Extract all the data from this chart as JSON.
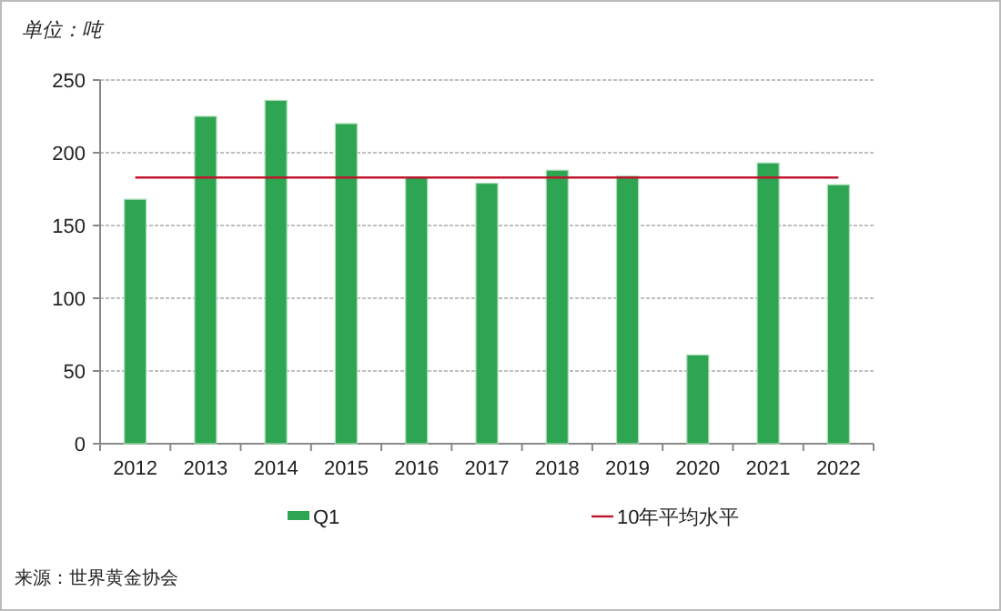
{
  "chart_data": {
    "type": "bar",
    "ylabel": "单位：吨",
    "categories": [
      "2012",
      "2013",
      "2014",
      "2015",
      "2016",
      "2017",
      "2018",
      "2019",
      "2020",
      "2021",
      "2022"
    ],
    "series": [
      {
        "name": "Q1",
        "color": "#2ea552",
        "values": [
          168,
          225,
          236,
          220,
          183,
          179,
          188,
          184,
          61,
          193,
          178
        ]
      }
    ],
    "ylim": [
      0,
      250
    ],
    "yticks": [
      0,
      50,
      100,
      150,
      200,
      250
    ],
    "grid": "y",
    "legend": "bottom",
    "ref_lines": [
      {
        "axis": "y",
        "value": 183,
        "label": "10年平均水平",
        "color": "#c0142c"
      }
    ],
    "annotations": [
      "来源：世界黄金协会"
    ]
  }
}
